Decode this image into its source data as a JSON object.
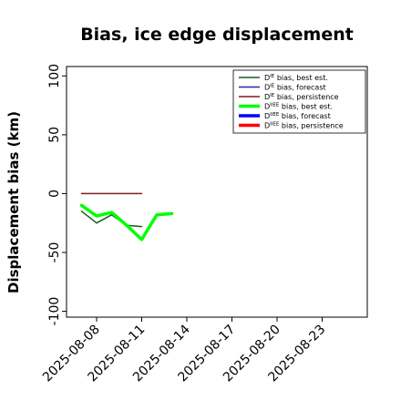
{
  "chart_data": {
    "type": "line",
    "title": "Bias, ice edge displacement",
    "xlabel": "",
    "ylabel": "Displacement bias (km)",
    "ylim": [
      -105,
      108
    ],
    "xlim": [
      "2025-08-06",
      "2025-08-26"
    ],
    "y_ticks": [
      100,
      50,
      0,
      -50,
      -100
    ],
    "x_ticks": [
      "2025-08-08",
      "2025-08-11",
      "2025-08-14",
      "2025-08-17",
      "2025-08-20",
      "2025-08-23"
    ],
    "highlight_tick": "2025-08-14",
    "highlight_color": "#228b22",
    "grid": false,
    "legend_position": "top-right",
    "series": [
      {
        "name": "D^IE bias, best est.",
        "color": "#1a5c1a",
        "width": 1.5,
        "x": [
          "2025-08-07",
          "2025-08-08",
          "2025-08-09",
          "2025-08-10",
          "2025-08-11"
        ],
        "y": [
          -15,
          -25,
          -18,
          -27,
          -28
        ]
      },
      {
        "name": "D^IE bias, forecast",
        "color": "#2a2aa0",
        "width": 1.5,
        "x": [],
        "y": []
      },
      {
        "name": "D^IE bias, persistence",
        "color": "#7a1f1f",
        "width": 1.5,
        "x": [
          "2025-08-07",
          "2025-08-11"
        ],
        "y": [
          0,
          0
        ]
      },
      {
        "name": "D^IIEE bias, best est.",
        "color": "#00ff00",
        "width": 3.5,
        "x": [
          "2025-08-07",
          "2025-08-08",
          "2025-08-09",
          "2025-08-10",
          "2025-08-11",
          "2025-08-12",
          "2025-08-13"
        ],
        "y": [
          -10,
          -19,
          -16,
          -27,
          -39,
          -18,
          -17
        ]
      },
      {
        "name": "D^IIEE bias, forecast",
        "color": "#0000ff",
        "width": 3.5,
        "x": [],
        "y": []
      },
      {
        "name": "D^IIEE bias, persistence",
        "color": "#ff0000",
        "width": 3.5,
        "x": [],
        "y": []
      }
    ]
  }
}
